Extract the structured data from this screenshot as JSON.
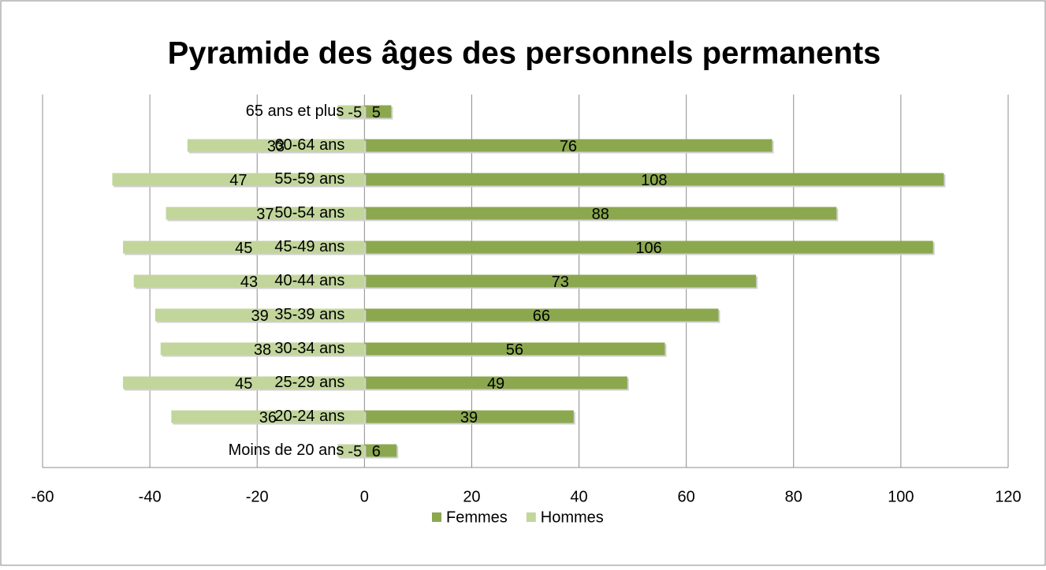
{
  "chart_data": {
    "type": "bar",
    "orientation": "horizontal",
    "title": "Pyramide des âges des personnels permanents",
    "categories": [
      "65 ans et plus",
      "60-64 ans",
      "55-59 ans",
      "50-54 ans",
      "45-49 ans",
      "40-44 ans",
      "35-39 ans",
      "30-34 ans",
      "25-29 ans",
      "20-24 ans",
      "Moins de 20 ans"
    ],
    "series": [
      {
        "name": "Femmes",
        "color": "#8ba84f",
        "values": [
          5,
          76,
          108,
          88,
          106,
          73,
          66,
          56,
          49,
          39,
          6
        ]
      },
      {
        "name": "Hommes",
        "color": "#c2d69c",
        "values": [
          -5,
          -33,
          -47,
          -37,
          -45,
          -43,
          -39,
          -38,
          -45,
          -36,
          -5
        ],
        "value_labels": [
          "-5",
          "33",
          "47",
          "37",
          "45",
          "43",
          "39",
          "38",
          "45",
          "36",
          "-5"
        ]
      }
    ],
    "xlim": [
      -60,
      120
    ],
    "xticks": [
      -60,
      -40,
      -20,
      0,
      20,
      40,
      60,
      80,
      100,
      120
    ],
    "grid": true,
    "legend": "bottom"
  }
}
